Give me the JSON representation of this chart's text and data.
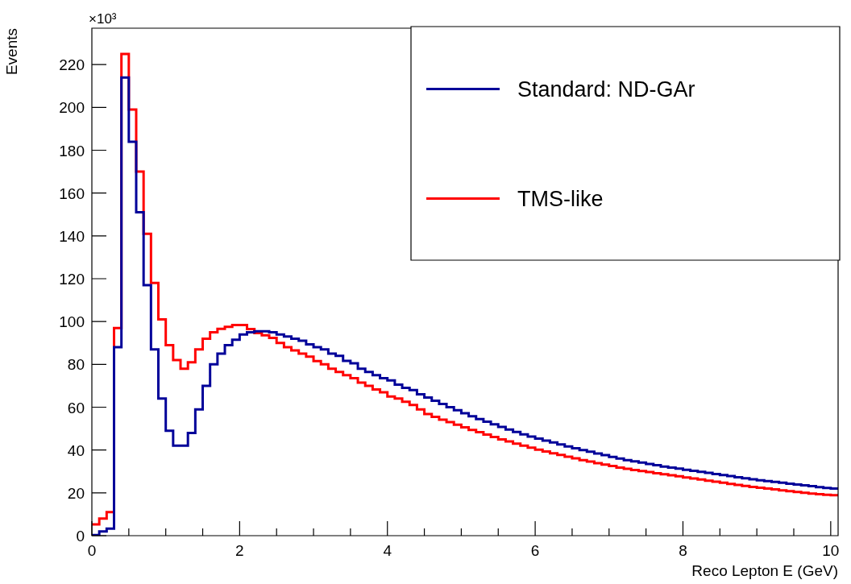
{
  "chart_data": {
    "type": "histogram",
    "xlabel": "Reco Lepton E (GeV)",
    "ylabel": "Events",
    "annotations": [
      "×10³"
    ],
    "bins": [
      0,
      0.1,
      0.2,
      0.3,
      0.4,
      0.5,
      0.6,
      0.7,
      0.8,
      0.9,
      1,
      1.1,
      1.2,
      1.3,
      1.4,
      1.5,
      1.6,
      1.7,
      1.8,
      1.9,
      2,
      2.1,
      2.2,
      2.3,
      2.4,
      2.5,
      2.6,
      2.7,
      2.8,
      2.9,
      3,
      3.1,
      3.2,
      3.3,
      3.4,
      3.5,
      3.6,
      3.7,
      3.8,
      3.9,
      4,
      4.1,
      4.2,
      4.3,
      4.4,
      4.5,
      4.6,
      4.7,
      4.8,
      4.9,
      5,
      5.1,
      5.2,
      5.3,
      5.4,
      5.5,
      5.6,
      5.7,
      5.8,
      5.9,
      6,
      6.1,
      6.2,
      6.3,
      6.4,
      6.5,
      6.6,
      6.7,
      6.8,
      6.9,
      7,
      7.1,
      7.2,
      7.3,
      7.4,
      7.5,
      7.6,
      7.7,
      7.8,
      7.9,
      8,
      8.1,
      8.2,
      8.3,
      8.4,
      8.5,
      8.6,
      8.7,
      8.8,
      8.9,
      9,
      9.1,
      9.2,
      9.3,
      9.4,
      9.5,
      9.6,
      9.7,
      9.8,
      9.9,
      10,
      10.1
    ],
    "series": [
      {
        "name": "Standard: ND-GAr",
        "color": "#000099",
        "values": [
          0.3,
          2,
          3.3,
          88,
          214,
          184,
          151,
          117,
          87,
          64,
          49,
          42,
          42,
          48,
          59,
          70,
          80,
          85,
          89,
          91.5,
          94,
          95,
          95.5,
          95.5,
          95,
          94,
          93,
          92,
          91,
          89.3,
          88,
          87,
          85,
          84,
          81.6,
          80.5,
          78,
          76.5,
          75,
          73.5,
          72.5,
          70.5,
          69,
          68,
          66,
          64.5,
          63,
          61.5,
          60,
          58.6,
          57.2,
          55.8,
          54.5,
          53.2,
          52,
          50.8,
          49.6,
          48.4,
          47.3,
          46.3,
          45.3,
          44.4,
          43.5,
          42.6,
          41.7,
          40.8,
          40,
          39.2,
          38.4,
          37.6,
          36.8,
          36,
          35.3,
          34.7,
          34.1,
          33.5,
          32.9,
          32.3,
          31.8,
          31.3,
          30.8,
          30.3,
          29.8,
          29.3,
          28.8,
          28.3,
          27.8,
          27.3,
          26.8,
          26.3,
          25.9,
          25.5,
          25.1,
          24.7,
          24.3,
          23.9,
          23.5,
          23.1,
          22.7,
          22.3,
          22
        ]
      },
      {
        "name": "TMS-like",
        "color": "#ff0000",
        "values": [
          5.3,
          8,
          11,
          97,
          225,
          199,
          170,
          141,
          118,
          101,
          89,
          82,
          78,
          81,
          87,
          92,
          95,
          96.6,
          97.5,
          98.4,
          98.4,
          96.5,
          94.6,
          93.6,
          92.4,
          90,
          88,
          86.5,
          85,
          83.6,
          81.5,
          80,
          78,
          76.5,
          75,
          73.5,
          71.5,
          70,
          68.3,
          67,
          65,
          64,
          62.5,
          61,
          59,
          56.8,
          55.5,
          54.2,
          53,
          51.8,
          50.6,
          49.4,
          48.3,
          47.2,
          46.1,
          45,
          44,
          43,
          42,
          41.1,
          40.2,
          39.3,
          38.5,
          37.7,
          36.9,
          36.1,
          35.3,
          34.6,
          33.9,
          33.2,
          32.5,
          31.8,
          31.2,
          30.7,
          30.2,
          29.7,
          29.2,
          28.7,
          28.2,
          27.7,
          27.2,
          26.7,
          26.2,
          25.7,
          25.2,
          24.7,
          24.2,
          23.7,
          23.2,
          22.8,
          22.4,
          22,
          21.6,
          21.2,
          20.8,
          20.4,
          20,
          19.7,
          19.4,
          19.1,
          18.9
        ]
      }
    ],
    "xlim": [
      0,
      10.1
    ],
    "xticks": [
      0,
      2,
      4,
      6,
      8,
      10
    ],
    "ylim": [
      0,
      237
    ],
    "yticks": [
      0,
      20,
      40,
      60,
      80,
      100,
      120,
      140,
      160,
      180,
      200,
      220
    ],
    "grid": false,
    "legend": "top right"
  }
}
